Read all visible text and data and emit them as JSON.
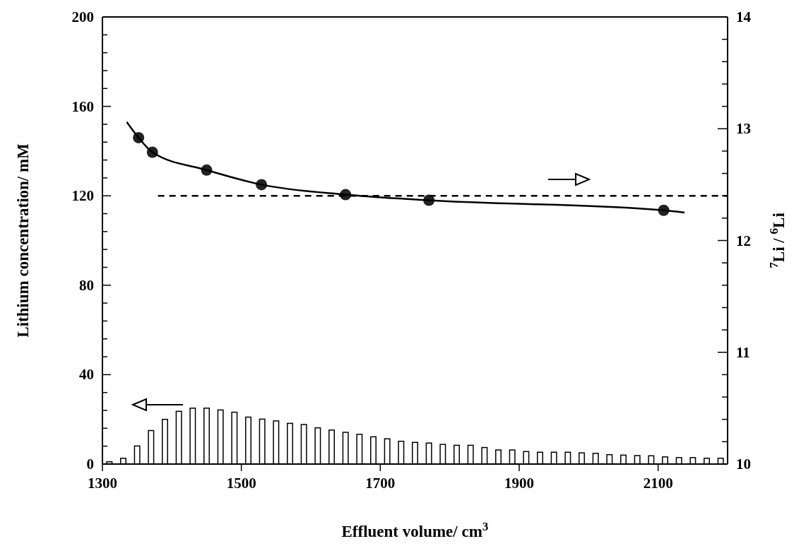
{
  "chart_data": {
    "type": "bar",
    "xlabel": "Effluent volume/ cm$^{3}$",
    "ylabel": "Lithium concentration/ mM",
    "y2label": "$^{7}$Li / $^{6}$Li",
    "xlim": [
      1300,
      2200
    ],
    "xticks": [
      1300,
      1500,
      1700,
      1900,
      2100
    ],
    "ylim": [
      0,
      200
    ],
    "yticks": [
      0,
      {
        "value": 8,
        "label": null
      },
      {
        "value": 16,
        "label": null
      },
      {
        "value": 24,
        "label": null
      },
      {
        "value": 32,
        "label": null
      },
      40,
      {
        "value": 48,
        "label": null
      },
      {
        "value": 56,
        "label": null
      },
      {
        "value": 64,
        "label": null
      },
      {
        "value": 72,
        "label": null
      },
      80,
      {
        "value": 88,
        "label": null
      },
      {
        "value": 96,
        "label": null
      },
      {
        "value": 104,
        "label": null
      },
      {
        "value": 112,
        "label": null
      },
      120,
      {
        "value": 128,
        "label": null
      },
      {
        "value": 136,
        "label": null
      },
      {
        "value": 144,
        "label": null
      },
      {
        "value": 152,
        "label": null
      },
      160,
      {
        "value": 168,
        "label": null
      },
      {
        "value": 176,
        "label": null
      },
      {
        "value": 184,
        "label": null
      },
      {
        "value": 192,
        "label": null
      },
      200
    ],
    "y2lim": [
      10,
      14
    ],
    "y2ticks": [
      10,
      {
        "value": 10.2,
        "label": null
      },
      {
        "value": 10.4,
        "label": null
      },
      {
        "value": 10.6,
        "label": null
      },
      {
        "value": 10.8,
        "label": null
      },
      11,
      {
        "value": 11.2,
        "label": null
      },
      {
        "value": 11.4,
        "label": null
      },
      {
        "value": 11.6,
        "label": null
      },
      {
        "value": 11.8,
        "label": null
      },
      12,
      {
        "value": 12.2,
        "label": null
      },
      {
        "value": 12.4,
        "label": null
      },
      {
        "value": 12.6,
        "label": null
      },
      {
        "value": 12.8,
        "label": null
      },
      13,
      {
        "value": 13.2,
        "label": null
      },
      {
        "value": 13.4,
        "label": null
      },
      {
        "value": 13.6,
        "label": null
      },
      {
        "value": 13.8,
        "label": null
      },
      14
    ],
    "grid": false,
    "series": [
      {
        "color": "#ffffff",
        "x": [
          1310,
          1330,
          1350,
          1370,
          1390,
          1410,
          1430,
          1450,
          1470,
          1490,
          1510,
          1530,
          1550,
          1570,
          1590,
          1610,
          1630,
          1650,
          1670,
          1690,
          1710,
          1730,
          1750,
          1770,
          1790,
          1810,
          1830,
          1850,
          1870,
          1890,
          1910,
          1930,
          1950,
          1970,
          1990,
          2010,
          2030,
          2050,
          2070,
          2090,
          2110,
          2130,
          2150,
          2170,
          2190
        ],
        "values": [
          1,
          2.6,
          8.1,
          15,
          20,
          23.6,
          25,
          25,
          24.2,
          23.2,
          21,
          20.1,
          19.3,
          18.2,
          17.7,
          16.2,
          15.2,
          14.2,
          13.3,
          12.2,
          11.3,
          10.2,
          9.7,
          9.4,
          8.8,
          8.4,
          8.4,
          7.4,
          6.3,
          6.3,
          5.6,
          5.3,
          5.3,
          5.3,
          5,
          4.8,
          4.2,
          4,
          3.8,
          3.7,
          3.2,
          2.9,
          2.9,
          2.6,
          2.6
        ]
      },
      {
        "type": "scatter",
        "axis": "y2",
        "color": "#222222",
        "marker": "circle",
        "x": [
          1352,
          1372,
          1450,
          1529,
          1650,
          1770,
          2108
        ],
        "values": [
          12.92,
          12.79,
          12.63,
          12.5,
          12.41,
          12.36,
          12.27
        ]
      },
      {
        "type": "line",
        "axis": "y2",
        "color": "#000000",
        "line_style": "solid",
        "x": [
          1335,
          1352,
          1372,
          1450,
          1529,
          1650,
          1770,
          2108,
          2138
        ],
        "values": [
          13.06,
          12.92,
          12.79,
          12.63,
          12.5,
          12.41,
          12.36,
          12.27,
          12.25
        ]
      },
      {
        "type": "line",
        "axis": "y2",
        "color": "#000000",
        "line_style": "dashed",
        "x": [
          1380,
          2200
        ],
        "values": [
          12.4,
          12.4
        ]
      }
    ]
  }
}
